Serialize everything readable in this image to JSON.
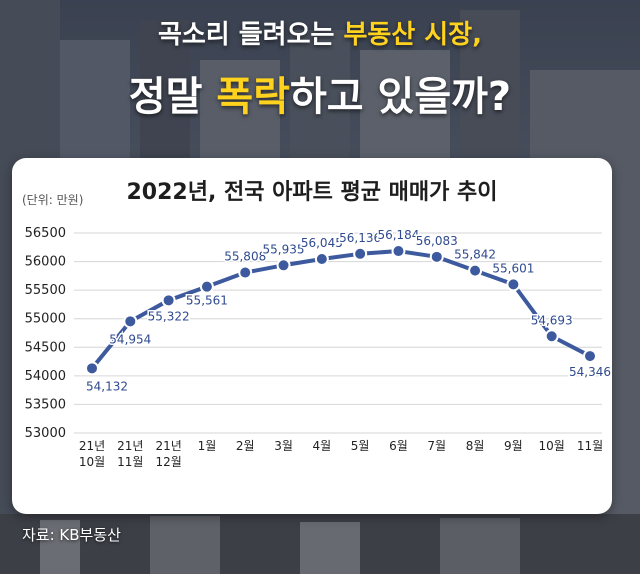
{
  "headline": {
    "line1_plain": "곡소리 들려오는 ",
    "line1_highlight": "부동산 시장,",
    "line2_pre": "정말 ",
    "line2_highlight": "폭락",
    "line2_post": "하고 있을까?"
  },
  "colors": {
    "accent": "#ffd21e",
    "line": "#3d5a9e",
    "label": "#2f4b8f"
  },
  "source": "자료: KB부동산",
  "chart_data": {
    "type": "line",
    "title": "2022년, 전국 아파트 평균 매매가 추이",
    "unit": "(단위: 만원)",
    "ylim": [
      53000,
      56500
    ],
    "yticks": [
      53000,
      53500,
      54000,
      54500,
      55000,
      55500,
      56000,
      56500
    ],
    "grid": true,
    "categories": [
      [
        "21년",
        "10월"
      ],
      [
        "21년",
        "11월"
      ],
      [
        "21년",
        "12월"
      ],
      [
        "1월"
      ],
      [
        "2월"
      ],
      [
        "3월"
      ],
      [
        "4월"
      ],
      [
        "5월"
      ],
      [
        "6월"
      ],
      [
        "7월"
      ],
      [
        "8월"
      ],
      [
        "9월"
      ],
      [
        "10월"
      ],
      [
        "11월"
      ]
    ],
    "values": [
      54132,
      54954,
      55322,
      55561,
      55808,
      55935,
      56045,
      56136,
      56184,
      56083,
      55842,
      55601,
      54693,
      54346
    ],
    "data_labels": [
      "54,132",
      "54,954",
      "55,322",
      "55,561",
      "55,808",
      "55,935",
      "56,045",
      "56,136",
      "56,184",
      "56,083",
      "55,842",
      "55,601",
      "54,693",
      "54,346"
    ]
  }
}
